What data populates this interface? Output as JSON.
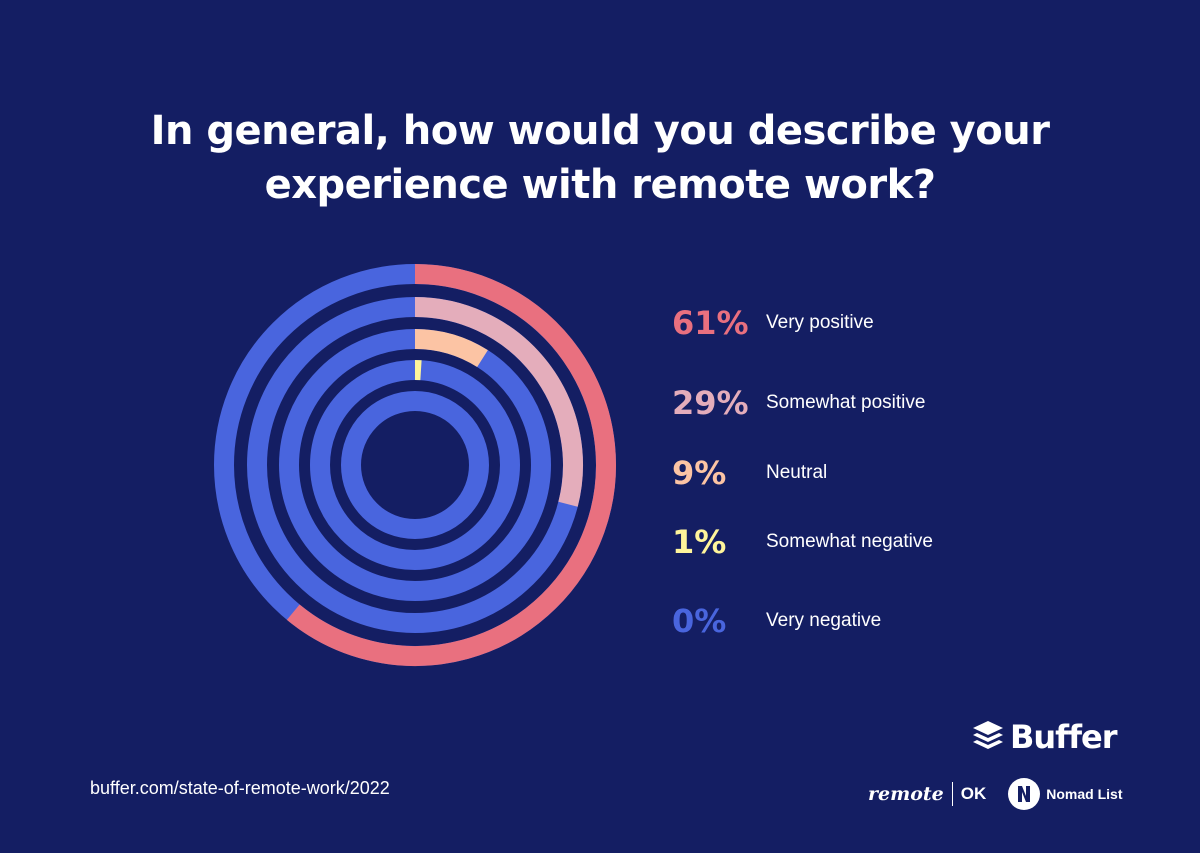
{
  "title": {
    "line1": "In general, how would you describe your",
    "line2": "experience with remote work?"
  },
  "chart_data": {
    "type": "radial-bar",
    "max": 100,
    "track_color": "#4965de",
    "series": [
      {
        "name": "Very positive",
        "value": 61,
        "label": "61%",
        "color": "#e9707f"
      },
      {
        "name": "Somewhat positive",
        "value": 29,
        "label": "29%",
        "color": "#e4adbb"
      },
      {
        "name": "Neutral",
        "value": 9,
        "label": "9%",
        "color": "#fcc4a4"
      },
      {
        "name": "Somewhat negative",
        "value": 1,
        "label": "1%",
        "color": "#fff59b"
      },
      {
        "name": "Very negative",
        "value": 0,
        "label": "0%",
        "color": "#4965de"
      }
    ]
  },
  "footer": {
    "source": "buffer.com/state-of-remote-work/2022",
    "brand": "Buffer",
    "partner1": "remote",
    "partner1_suffix": "OK",
    "partner2": "Nomad List"
  },
  "colors": {
    "background": "#141e63",
    "text": "#ffffff"
  }
}
